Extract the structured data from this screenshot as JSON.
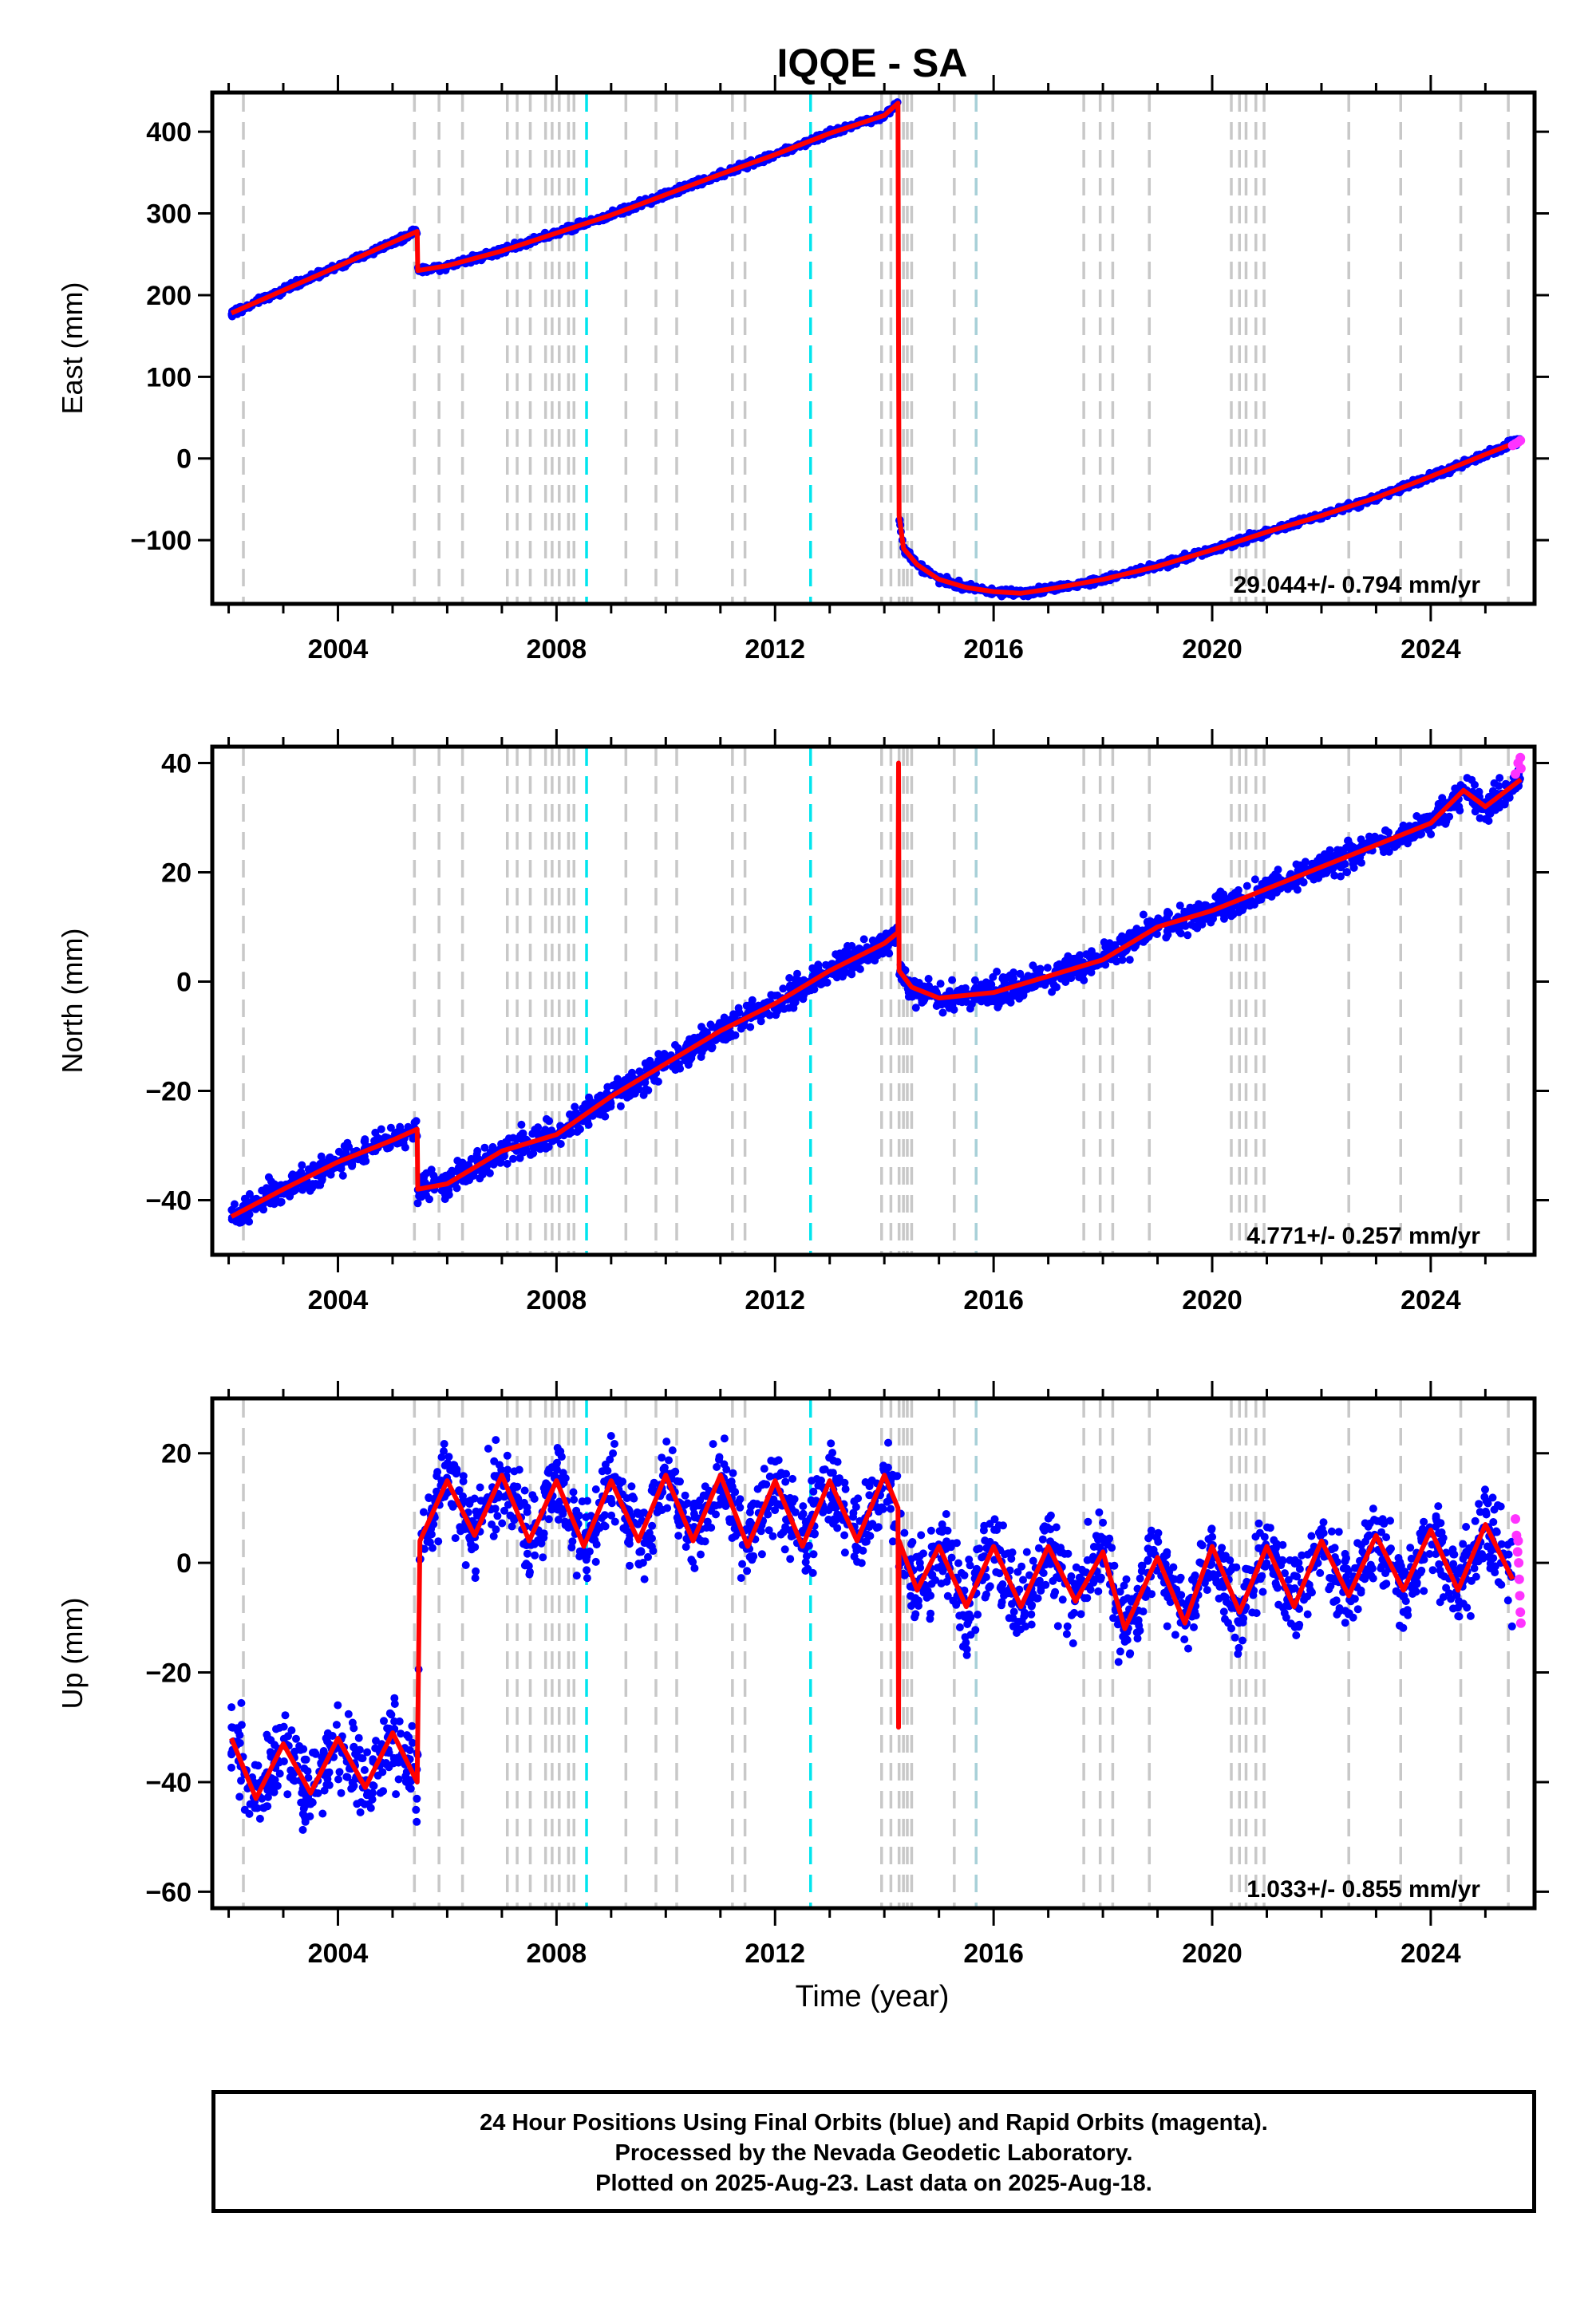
{
  "chart_data": {
    "type": "scatter",
    "title": "IQQE - SA",
    "xlabel": "Time (year)",
    "x_range": [
      2001.7,
      2025.9
    ],
    "x_ticks": [
      2004,
      2008,
      2012,
      2016,
      2020,
      2024
    ],
    "x_tick_labels": [
      "2004",
      "2008",
      "2012",
      "2016",
      "2020",
      "2024"
    ],
    "grid": false,
    "colors": {
      "final_orbits": "#0000ff",
      "rapid_orbits": "#ff33ff",
      "model": "#ff0000",
      "antenna_change": "#c8c8c8",
      "earthquake": "#00e5ee",
      "earthquake_far": "#a8d0d8"
    },
    "events": {
      "gray_dashed": [
        2002.27,
        2005.4,
        2005.85,
        2006.28,
        2007.1,
        2007.28,
        2007.52,
        2007.8,
        2007.92,
        2008.05,
        2008.22,
        2008.32,
        2009.27,
        2009.82,
        2010.2,
        2011.22,
        2011.45,
        2013.95,
        2014.12,
        2014.27,
        2014.35,
        2014.42,
        2014.5,
        2015.28,
        2017.65,
        2017.95,
        2018.18,
        2018.85,
        2020.35,
        2020.5,
        2020.62,
        2020.8,
        2020.95,
        2022.5,
        2023.45,
        2024.55,
        2025.42
      ],
      "cyan_dashed": [
        2008.55,
        2012.65
      ],
      "lightblue_dashed": [
        2015.68
      ]
    },
    "panels": [
      {
        "ylabel": "East (mm)",
        "ylim": [
          -178,
          448
        ],
        "y_ticks": [
          400,
          300,
          200,
          100,
          0,
          -100
        ],
        "y_tick_labels": [
          "400",
          "300",
          "200",
          "100",
          "0",
          "−100"
        ],
        "rate_label": "29.044+/- 0.794 mm/yr",
        "model_points": [
          [
            2002.05,
            178
          ],
          [
            2005.45,
            278
          ],
          [
            2005.46,
            230
          ],
          [
            2006.0,
            236
          ],
          [
            2007.0,
            254
          ],
          [
            2008.0,
            276
          ],
          [
            2009.0,
            298
          ],
          [
            2010.0,
            323
          ],
          [
            2011.0,
            348
          ],
          [
            2012.0,
            372
          ],
          [
            2013.0,
            398
          ],
          [
            2014.0,
            420
          ],
          [
            2014.25,
            435
          ],
          [
            2014.26,
            140
          ],
          [
            2014.27,
            -70
          ],
          [
            2014.35,
            -110
          ],
          [
            2014.6,
            -130
          ],
          [
            2015.0,
            -148
          ],
          [
            2015.5,
            -158
          ],
          [
            2016.0,
            -163
          ],
          [
            2016.5,
            -165
          ],
          [
            2017.0,
            -160
          ],
          [
            2018.0,
            -148
          ],
          [
            2019.0,
            -132
          ],
          [
            2020.0,
            -112
          ],
          [
            2021.0,
            -90
          ],
          [
            2022.0,
            -70
          ],
          [
            2023.0,
            -48
          ],
          [
            2024.0,
            -22
          ],
          [
            2025.0,
            5
          ],
          [
            2025.65,
            22
          ]
        ],
        "rapid_points": [
          [
            2025.5,
            16
          ],
          [
            2025.55,
            18
          ],
          [
            2025.6,
            20
          ],
          [
            2025.64,
            22
          ]
        ]
      },
      {
        "ylabel": "North (mm)",
        "ylim": [
          -50,
          43
        ],
        "y_ticks": [
          40,
          20,
          0,
          -20,
          -40
        ],
        "y_tick_labels": [
          "40",
          "20",
          "0",
          "−20",
          "−40"
        ],
        "rate_label": "4.771+/- 0.257 mm/yr",
        "model_points": [
          [
            2002.05,
            -43
          ],
          [
            2003.0,
            -38
          ],
          [
            2004.0,
            -33
          ],
          [
            2005.0,
            -29
          ],
          [
            2005.45,
            -27
          ],
          [
            2005.46,
            -38
          ],
          [
            2006.0,
            -37
          ],
          [
            2007.0,
            -31
          ],
          [
            2008.0,
            -28
          ],
          [
            2009.0,
            -21
          ],
          [
            2010.0,
            -15
          ],
          [
            2011.0,
            -9
          ],
          [
            2012.0,
            -4
          ],
          [
            2013.0,
            2
          ],
          [
            2014.0,
            7
          ],
          [
            2014.25,
            9
          ],
          [
            2014.26,
            40
          ],
          [
            2014.27,
            2
          ],
          [
            2014.5,
            -1
          ],
          [
            2015.0,
            -3
          ],
          [
            2016.0,
            -2
          ],
          [
            2017.0,
            1
          ],
          [
            2018.0,
            4
          ],
          [
            2019.0,
            10
          ],
          [
            2020.0,
            13
          ],
          [
            2021.0,
            17
          ],
          [
            2022.0,
            21
          ],
          [
            2023.0,
            25
          ],
          [
            2024.0,
            29
          ],
          [
            2024.6,
            35
          ],
          [
            2025.0,
            32
          ],
          [
            2025.65,
            37
          ]
        ],
        "rapid_points": [
          [
            2025.55,
            38
          ],
          [
            2025.6,
            40
          ],
          [
            2025.64,
            41
          ],
          [
            2025.65,
            39
          ]
        ]
      },
      {
        "ylabel": "Up (mm)",
        "ylim": [
          -63,
          30
        ],
        "y_ticks": [
          20,
          0,
          -20,
          -40,
          -60
        ],
        "y_tick_labels": [
          "20",
          "0",
          "−20",
          "−40",
          "−60"
        ],
        "rate_label": "1.033+/- 0.855 mm/yr",
        "model_points": [
          [
            2002.05,
            -32
          ],
          [
            2002.5,
            -43
          ],
          [
            2003.0,
            -33
          ],
          [
            2003.5,
            -42
          ],
          [
            2004.0,
            -32
          ],
          [
            2004.5,
            -41
          ],
          [
            2005.0,
            -31
          ],
          [
            2005.45,
            -40
          ],
          [
            2005.5,
            4
          ],
          [
            2006.0,
            15
          ],
          [
            2006.5,
            5
          ],
          [
            2007.0,
            16
          ],
          [
            2007.5,
            4
          ],
          [
            2008.0,
            15
          ],
          [
            2008.5,
            3
          ],
          [
            2009.0,
            15
          ],
          [
            2009.5,
            4
          ],
          [
            2010.0,
            16
          ],
          [
            2010.5,
            4
          ],
          [
            2011.0,
            16
          ],
          [
            2011.5,
            3
          ],
          [
            2012.0,
            15
          ],
          [
            2012.5,
            3
          ],
          [
            2013.0,
            15
          ],
          [
            2013.5,
            4
          ],
          [
            2014.0,
            16
          ],
          [
            2014.25,
            10
          ],
          [
            2014.26,
            -30
          ],
          [
            2014.27,
            4
          ],
          [
            2014.6,
            -5
          ],
          [
            2015.0,
            3
          ],
          [
            2015.5,
            -8
          ],
          [
            2016.0,
            3
          ],
          [
            2016.5,
            -8
          ],
          [
            2017.0,
            3
          ],
          [
            2017.5,
            -7
          ],
          [
            2018.0,
            2
          ],
          [
            2018.4,
            -12
          ],
          [
            2019.0,
            1
          ],
          [
            2019.5,
            -11
          ],
          [
            2020.0,
            3
          ],
          [
            2020.5,
            -9
          ],
          [
            2021.0,
            3
          ],
          [
            2021.5,
            -8
          ],
          [
            2022.0,
            4
          ],
          [
            2022.5,
            -6
          ],
          [
            2023.0,
            5
          ],
          [
            2023.5,
            -5
          ],
          [
            2024.0,
            6
          ],
          [
            2024.5,
            -5
          ],
          [
            2025.0,
            7
          ],
          [
            2025.5,
            -3
          ]
        ],
        "rapid_points": [
          [
            2025.55,
            8
          ],
          [
            2025.57,
            5
          ],
          [
            2025.59,
            2
          ],
          [
            2025.61,
            0
          ],
          [
            2025.62,
            -3
          ],
          [
            2025.63,
            -6
          ],
          [
            2025.64,
            -9
          ],
          [
            2025.65,
            -11
          ],
          [
            2025.6,
            4
          ]
        ]
      }
    ]
  },
  "footer": {
    "line1": "24 Hour Positions Using Final Orbits (blue) and Rapid Orbits (magenta).",
    "line2": "Processed by the Nevada Geodetic Laboratory.",
    "line3": "Plotted on 2025-Aug-23. Last data on 2025-Aug-18."
  }
}
